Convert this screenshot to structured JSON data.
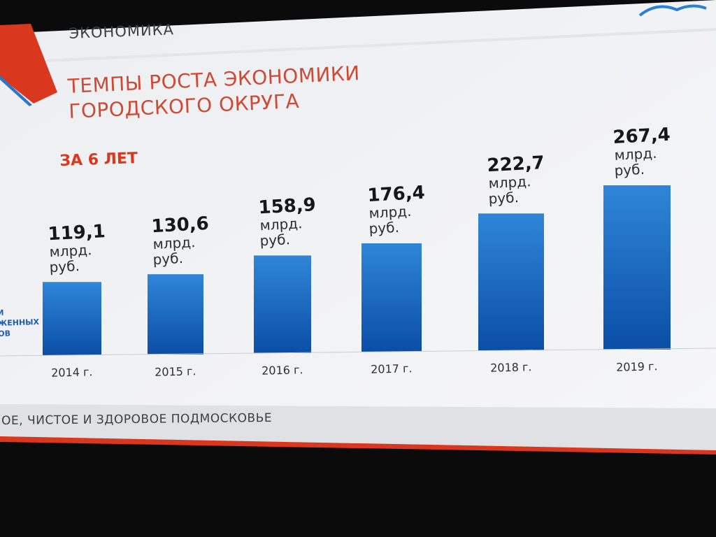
{
  "slide": {
    "section_label": "ЭКОНОМИКА",
    "title_line1": "ТЕМПЫ РОСТА ЭКОНОМИКИ",
    "title_line2": "ГОРОДСКОГО ОКРУГА",
    "subtitle": "ЗА 6 ЛЕТ",
    "partial_left_line1": "И",
    "partial_left_line2": "ЖЕННЫХ",
    "partial_left_line3": "ОВ",
    "footer_text": "ОЕ, ЧИСТОЕ И ЗДОРОВОЕ ПОДМОСКОВЬЕ"
  },
  "colors": {
    "accent_red": "#d9381e",
    "bar_top": "#2f86d8",
    "bar_bottom": "#0b4ea6",
    "slide_bg": "#f2f3f5"
  },
  "chart_data": {
    "type": "bar",
    "categories": [
      "2014 г.",
      "2015 г.",
      "2016 г.",
      "2017 г.",
      "2018 г.",
      "2019 г."
    ],
    "values": [
      119.1,
      130.6,
      158.9,
      176.4,
      222.7,
      267.4
    ],
    "value_labels": [
      "119,1",
      "130,6",
      "158,9",
      "176,4",
      "222,7",
      "267,4"
    ],
    "unit_line1": "млрд.",
    "unit_line2": "руб.",
    "title": "ТЕМПЫ РОСТА ЭКОНОМИКИ ГОРОДСКОГО ОКРУГА",
    "xlabel": "",
    "ylabel": "",
    "grid": false
  }
}
